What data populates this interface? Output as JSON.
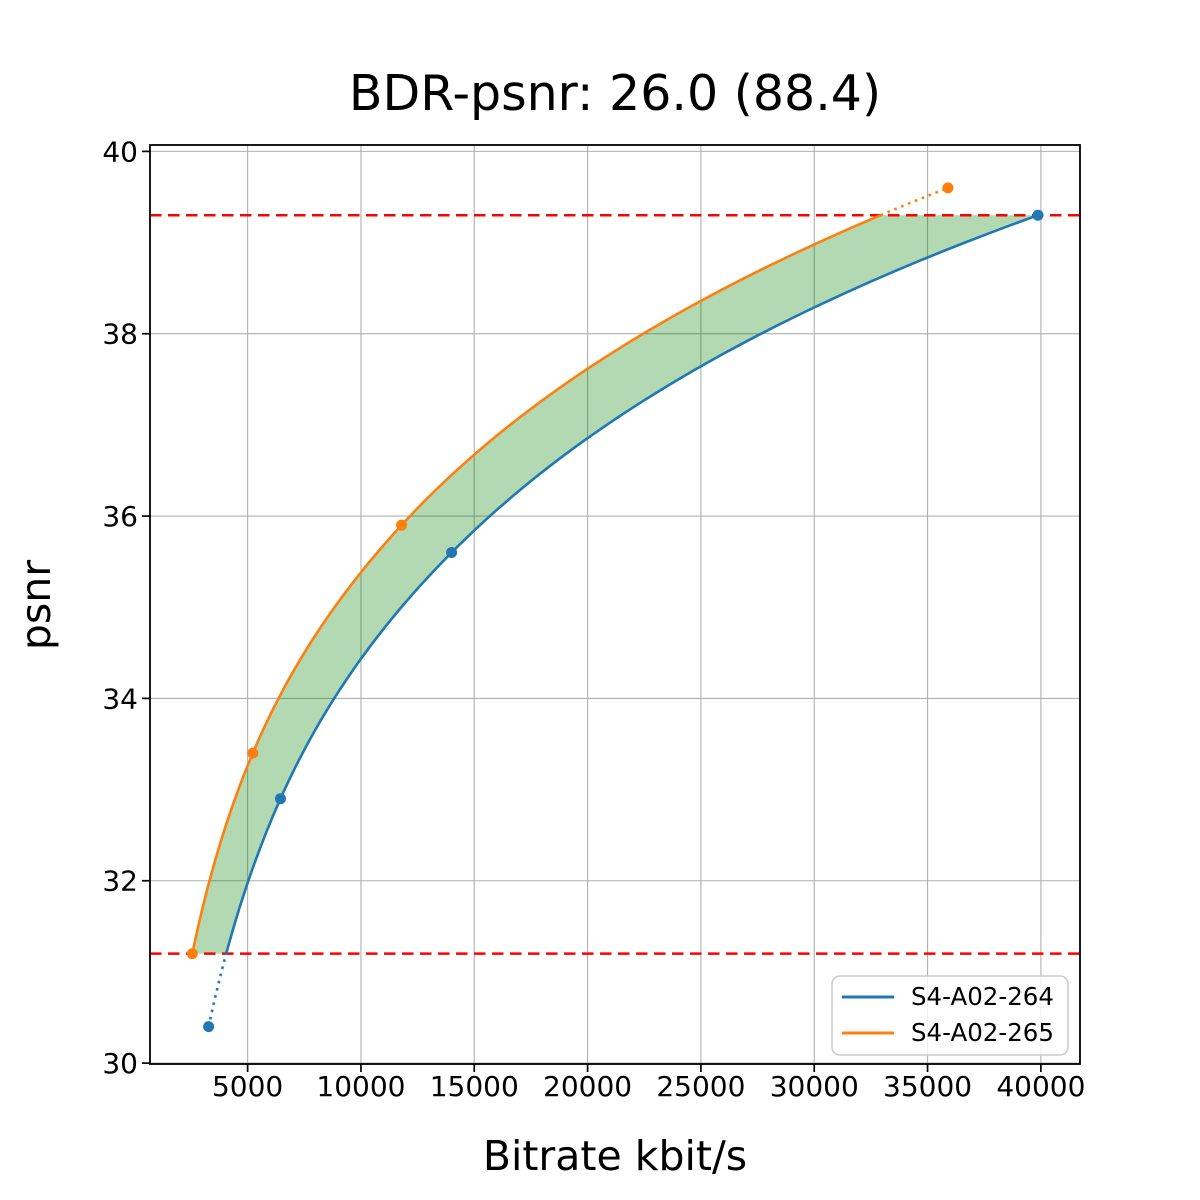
{
  "chart_data": {
    "type": "line",
    "title": "BDR-psnr: 26.0 (88.4)",
    "xlabel": "Bitrate kbit/s",
    "ylabel": "psnr",
    "xlim": [
      693,
      41726
    ],
    "ylim": [
      29.99,
      40.07
    ],
    "x_ticks": [
      5000,
      10000,
      15000,
      20000,
      25000,
      30000,
      35000,
      40000
    ],
    "y_ticks": [
      30,
      32,
      34,
      36,
      38,
      40
    ],
    "grid": true,
    "grid_color": "#b0b0b0",
    "interpolation": "pchip of log10(bitrate) vs psnr",
    "legend_position": "lower right",
    "series": [
      {
        "name": "S4-A02-264",
        "color": "#1f77b4",
        "points": [
          [
            3280,
            30.4
          ],
          [
            6450,
            32.9
          ],
          [
            14000,
            35.6
          ],
          [
            39870,
            39.3
          ]
        ]
      },
      {
        "name": "S4-A02-265",
        "color": "#ff7f0e",
        "points": [
          [
            2560,
            31.2
          ],
          [
            5230,
            33.4
          ],
          [
            11790,
            35.9
          ],
          [
            35900,
            39.6
          ]
        ]
      }
    ],
    "overlap_band": {
      "low_psnr": 31.2,
      "high_psnr": 39.3,
      "line_color": "#ff0000",
      "line_style": "dashed",
      "fill_color": "rgba(0,128,0,0.3)"
    }
  }
}
